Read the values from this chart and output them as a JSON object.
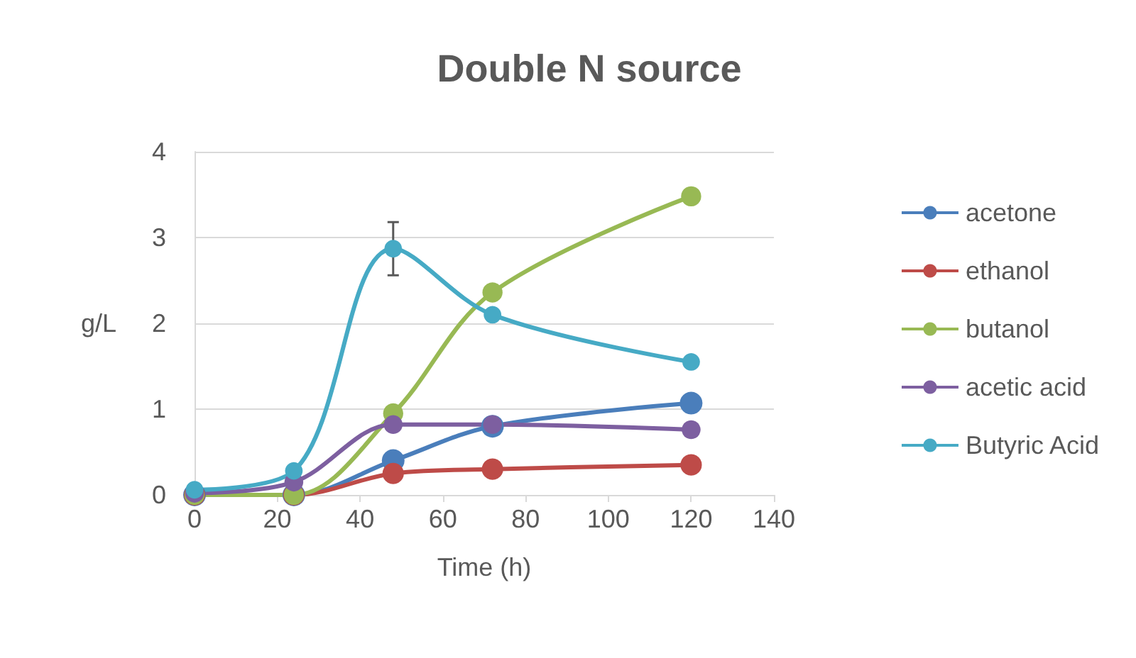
{
  "chart_data": {
    "type": "line",
    "title": "Double N source",
    "xlabel": "Time (h)",
    "ylabel": "g/L",
    "x": [
      0,
      24,
      48,
      72,
      120
    ],
    "series": [
      {
        "name": "acetone",
        "color": "#4a7ebb",
        "values": [
          0,
          0,
          0.4,
          0.8,
          1.07
        ]
      },
      {
        "name": "ethanol",
        "color": "#be4b48",
        "values": [
          0,
          0,
          0.25,
          0.3,
          0.35
        ]
      },
      {
        "name": "butanol",
        "color": "#98b954",
        "values": [
          0,
          0,
          0.95,
          2.36,
          3.48
        ]
      },
      {
        "name": "acetic acid",
        "color": "#7d5fa0",
        "values": [
          0.02,
          0.15,
          0.82,
          0.82,
          0.76
        ]
      },
      {
        "name": "Butyric Acid",
        "color": "#46aac5",
        "values": [
          0.06,
          0.28,
          2.87,
          2.1,
          1.55
        ],
        "errors": [
          null,
          null,
          0.31,
          null,
          null
        ]
      }
    ],
    "xlim": [
      0,
      140
    ],
    "xticks": [
      0,
      20,
      40,
      60,
      80,
      100,
      120,
      140
    ],
    "ylim": [
      0,
      4
    ],
    "yticks": [
      0,
      1,
      2,
      3,
      4
    ],
    "grid": "y",
    "legend": "right",
    "marker": "circle"
  }
}
